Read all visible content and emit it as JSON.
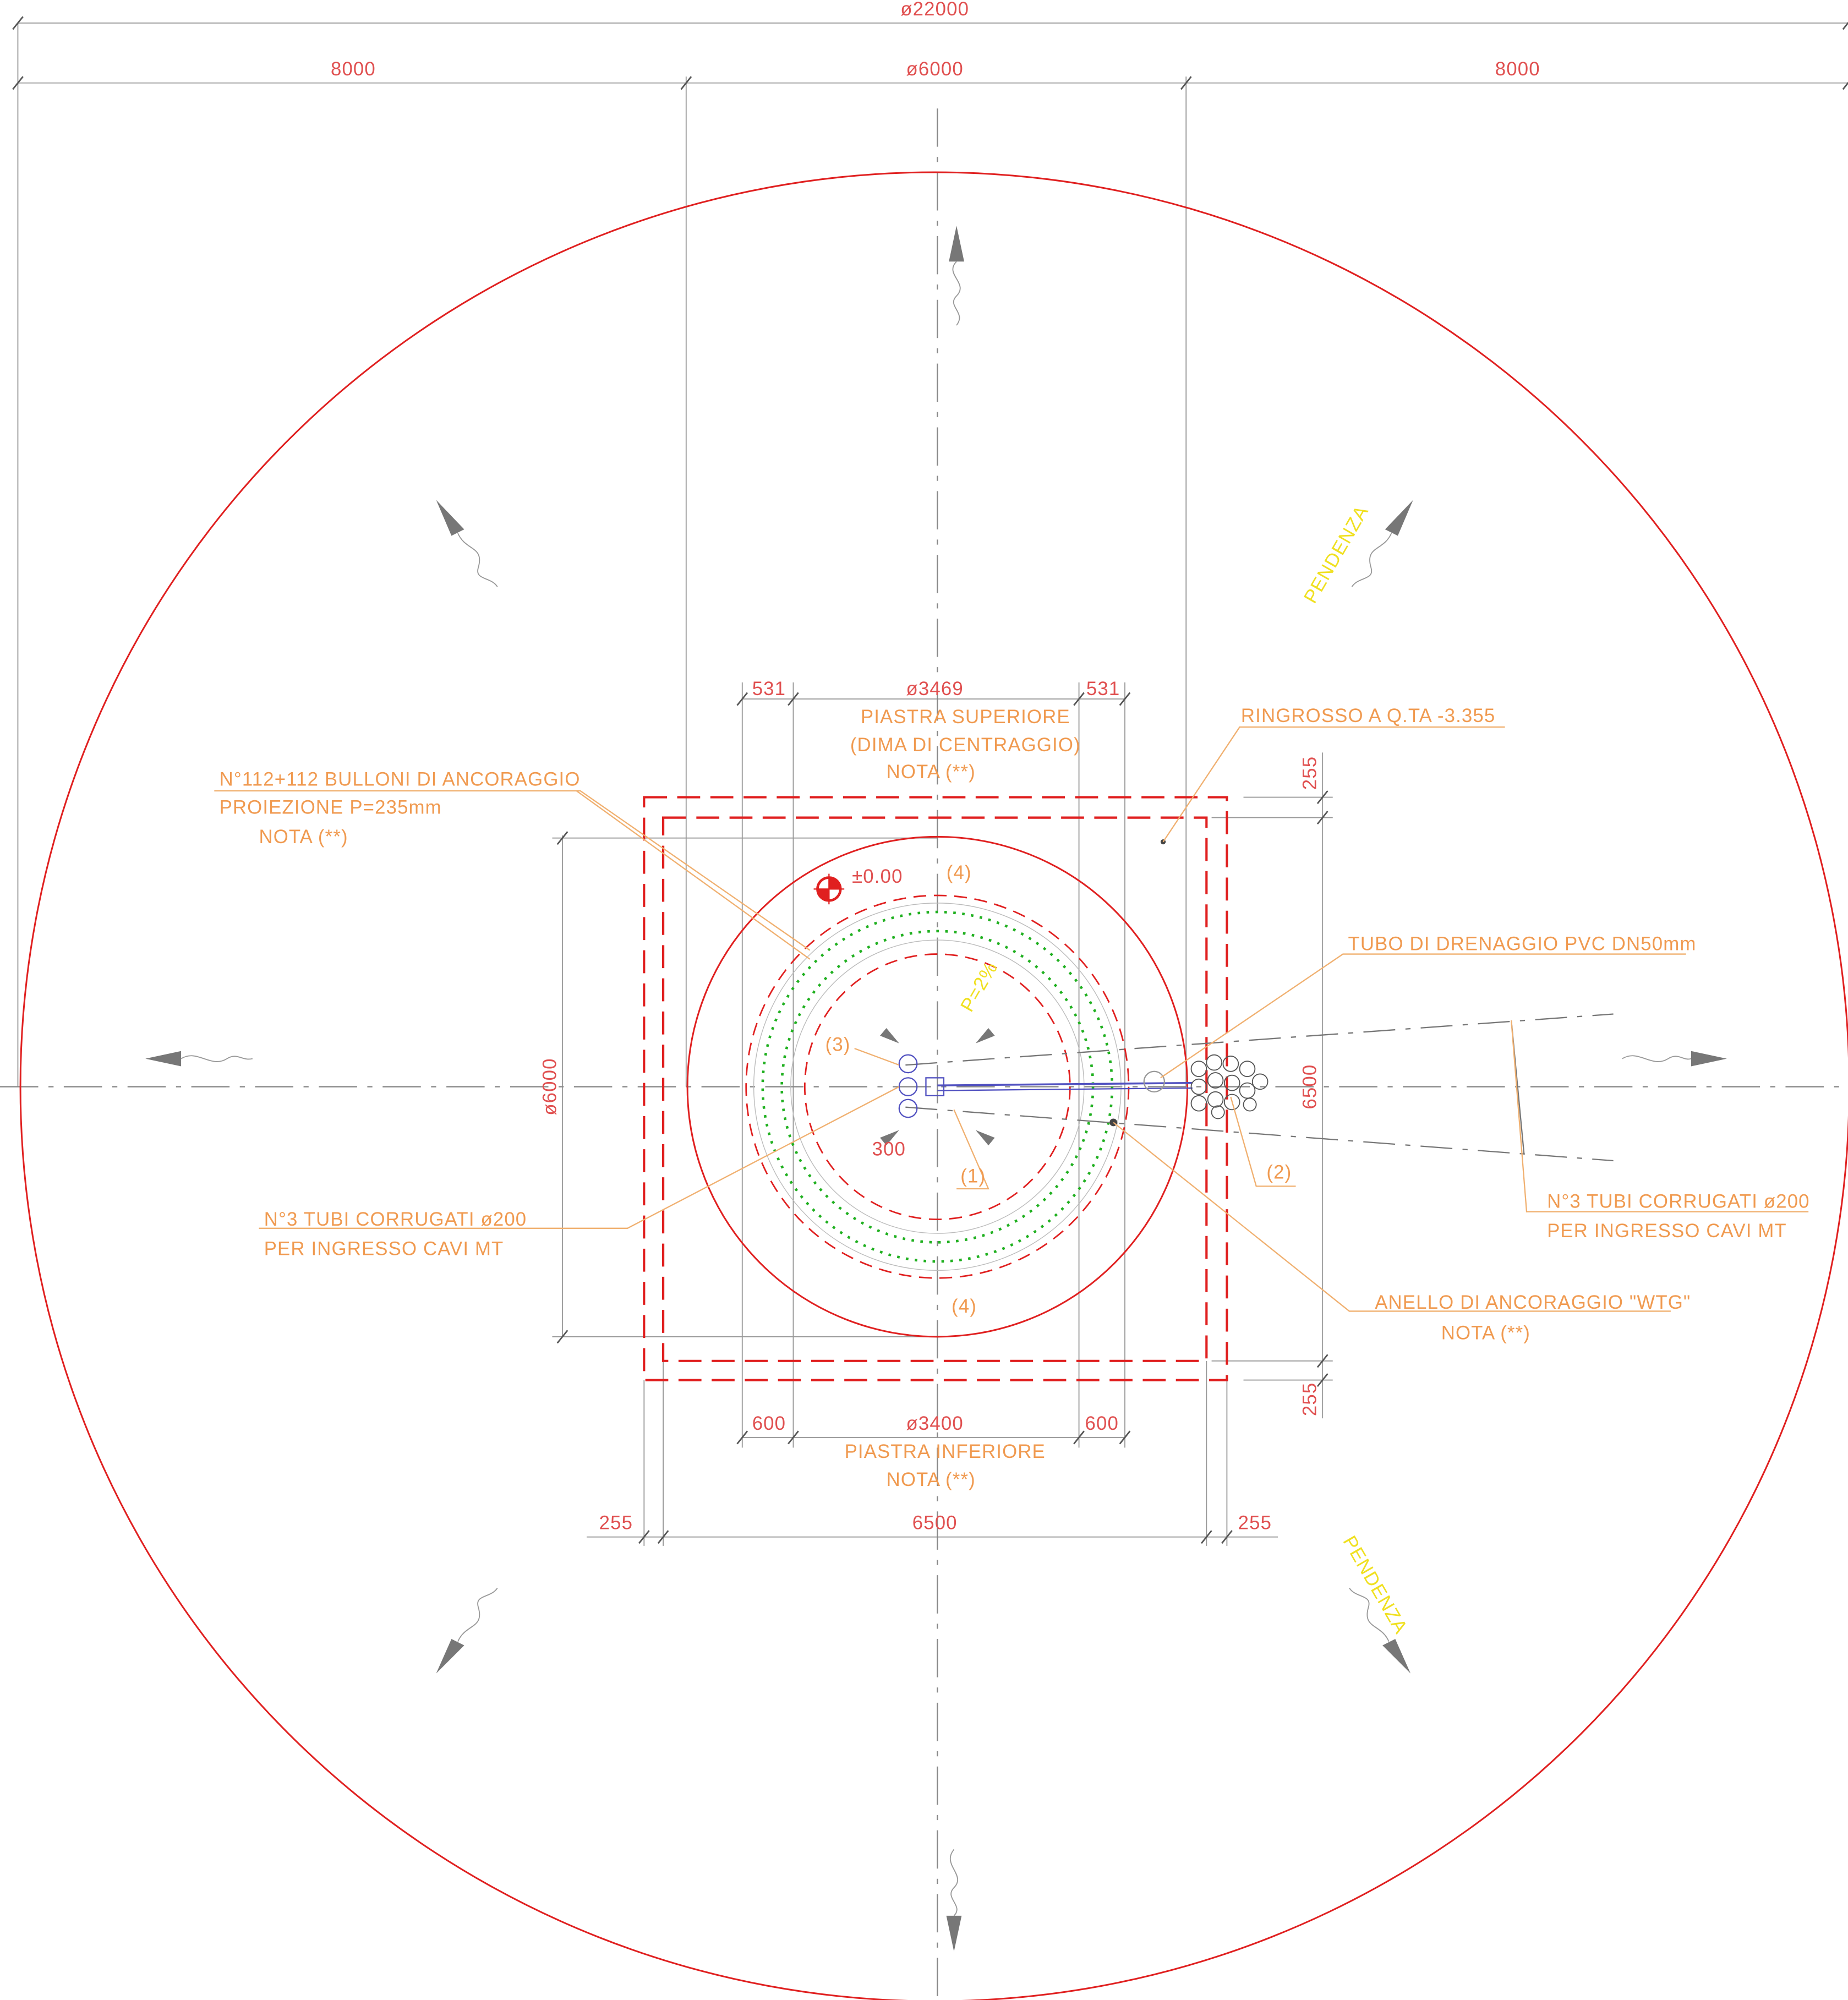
{
  "dimensions": {
    "overall": "ø22000",
    "left": "8000",
    "center": "ø6000",
    "right": "8000",
    "top_left_offset": "531",
    "top_plate_diameter": "ø3469",
    "top_right_offset": "531",
    "right_top_margin": "255",
    "right_side": "6500",
    "right_bottom_margin": "255",
    "left_side": "ø6000",
    "bottom_left_offset": "600",
    "bottom_plate_diameter": "ø3400",
    "bottom_right_offset": "600",
    "bottom_left_margin": "255",
    "bottom_side": "6500",
    "bottom_right_margin": "255",
    "pipe_offset": "300"
  },
  "labels": {
    "upper_plate": [
      "PIASTRA SUPERIORE",
      "(DIMA DI CENTRAGGIO)",
      "NOTA (**)"
    ],
    "thickening": "RINGROSSO A Q.TA -3.355",
    "bolts": [
      "N°112+112 BULLONI DI ANCORAGGIO",
      "PROIEZIONE P=235mm",
      "NOTA (**)"
    ],
    "level": "±0.00",
    "ref_4_top": "(4)",
    "ref_4_bottom": "(4)",
    "ref_1": "(1)",
    "ref_2": "(2)",
    "ref_3": "(3)",
    "drain": "TUBO DI DRENAGGIO PVC DN50mm",
    "slope": "P=2%",
    "pipes_left": [
      "N°3 TUBI CORRUGATI ø200",
      "PER INGRESSO CAVI MT"
    ],
    "pipes_right": [
      "N°3 TUBI CORRUGATI ø200",
      "PER INGRESSO CAVI MT"
    ],
    "ring": [
      "ANELLO DI ANCORAGGIO \"WTG\"",
      "NOTA (**)"
    ],
    "lower_plate": [
      "PIASTRA INFERIORE",
      "NOTA (**)"
    ],
    "slope_text": [
      "PENDENZA",
      "PENDENZA"
    ]
  }
}
